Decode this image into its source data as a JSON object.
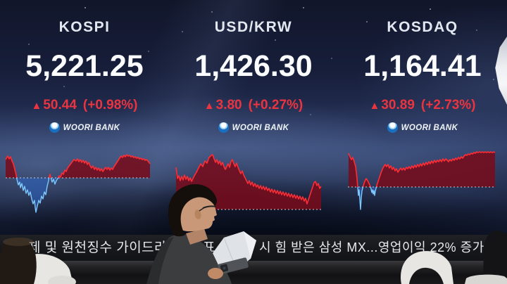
{
  "board": {
    "up_arrow": "▲",
    "panels": [
      {
        "label": "KOSPI",
        "value": "5,221.25",
        "change": "50.44",
        "change_pct": "(+0.98%)",
        "direction": "up",
        "bank": "WOORI BANK"
      },
      {
        "label": "USD/KRW",
        "value": "1,426.30",
        "change": "3.80",
        "change_pct": "(+0.27%)",
        "direction": "up",
        "bank": "WOORI BANK"
      },
      {
        "label": "KOSDAQ",
        "value": "1,164.41",
        "change": "30.89",
        "change_pct": "(+2.73%)",
        "direction": "up",
        "bank": "WOORI BANK"
      }
    ],
    "colors": {
      "up_red": "#ea3440",
      "line_red": "#ff2c34",
      "fill_red": "rgba(118,13,28,0.88)",
      "line_blue": "#7ec8ff",
      "fill_blue": "rgba(45,102,196,0.55)",
      "screen_navy": "#1c2444",
      "baseline_dotted": "#d8dce2"
    }
  },
  "ticker": {
    "fragments": [
      "제 및 원천징수 가이드라",
      "표",
      "시 힘 받은 삼성 MX...영업이익 22% 증가"
    ],
    "arrow": "▶"
  },
  "chart_data": [
    {
      "type": "area",
      "title": "KOSPI intraday",
      "xlabel": "time (unlabeled)",
      "baseline_value": 5170.81,
      "baseline_meaning": "previous close (dotted line)",
      "trend": "opens above prior close, dips below early, then rallies above for rest of session",
      "view": [
        205,
        105
      ],
      "baseline": 38,
      "points": [
        [
          0,
          12
        ],
        [
          3,
          7
        ],
        [
          5,
          11
        ],
        [
          7,
          8
        ],
        [
          9,
          14
        ],
        [
          11,
          18
        ],
        [
          13,
          26
        ],
        [
          15,
          34
        ],
        [
          16,
          40
        ],
        [
          18,
          48
        ],
        [
          20,
          44
        ],
        [
          21,
          52
        ],
        [
          23,
          46
        ],
        [
          25,
          56
        ],
        [
          27,
          50
        ],
        [
          29,
          60
        ],
        [
          31,
          55
        ],
        [
          33,
          63
        ],
        [
          35,
          58
        ],
        [
          37,
          68
        ],
        [
          39,
          75
        ],
        [
          41,
          70
        ],
        [
          42,
          80
        ],
        [
          43,
          87
        ],
        [
          45,
          78
        ],
        [
          47,
          70
        ],
        [
          49,
          74
        ],
        [
          51,
          64
        ],
        [
          53,
          68
        ],
        [
          55,
          58
        ],
        [
          57,
          62
        ],
        [
          59,
          50
        ],
        [
          61,
          42
        ],
        [
          62,
          36
        ],
        [
          63,
          33
        ],
        [
          64,
          37
        ],
        [
          66,
          44
        ],
        [
          68,
          40
        ],
        [
          70,
          47
        ],
        [
          72,
          42
        ],
        [
          74,
          39
        ],
        [
          76,
          35
        ],
        [
          78,
          37
        ],
        [
          80,
          31
        ],
        [
          82,
          33
        ],
        [
          84,
          27
        ],
        [
          86,
          29
        ],
        [
          88,
          24
        ],
        [
          91,
          20
        ],
        [
          94,
          16
        ],
        [
          97,
          12
        ],
        [
          100,
          14
        ],
        [
          102,
          11
        ],
        [
          104,
          15
        ],
        [
          106,
          12
        ],
        [
          108,
          16
        ],
        [
          110,
          13
        ],
        [
          112,
          17
        ],
        [
          114,
          14
        ],
        [
          116,
          19
        ],
        [
          118,
          16
        ],
        [
          120,
          21
        ],
        [
          122,
          24
        ],
        [
          124,
          21
        ],
        [
          126,
          26
        ],
        [
          128,
          23
        ],
        [
          130,
          27
        ],
        [
          132,
          24
        ],
        [
          134,
          28
        ],
        [
          136,
          25
        ],
        [
          138,
          29
        ],
        [
          140,
          26
        ],
        [
          142,
          23
        ],
        [
          144,
          26
        ],
        [
          146,
          23
        ],
        [
          148,
          27
        ],
        [
          150,
          24
        ],
        [
          152,
          26
        ],
        [
          154,
          22
        ],
        [
          156,
          19
        ],
        [
          158,
          16
        ],
        [
          160,
          13
        ],
        [
          162,
          10
        ],
        [
          164,
          7
        ],
        [
          166,
          9
        ],
        [
          168,
          6
        ],
        [
          170,
          8
        ],
        [
          172,
          5
        ],
        [
          174,
          7
        ],
        [
          176,
          6
        ],
        [
          178,
          8
        ],
        [
          180,
          7
        ],
        [
          182,
          9
        ],
        [
          184,
          8
        ],
        [
          186,
          10
        ],
        [
          188,
          9
        ],
        [
          190,
          11
        ],
        [
          192,
          10
        ],
        [
          194,
          12
        ],
        [
          196,
          11
        ],
        [
          198,
          13
        ],
        [
          200,
          12
        ],
        [
          202,
          14
        ],
        [
          205,
          18
        ]
      ]
    },
    {
      "type": "area",
      "title": "USD/KRW intraday",
      "xlabel": "time (unlabeled)",
      "baseline_value": 1422.5,
      "baseline_meaning": "previous close (dotted line)",
      "trend": "stays above prior close all day; spikes early then drifts down, rebounds at close",
      "view": [
        208,
        100
      ],
      "baseline": 86,
      "points": [
        [
          1,
          26
        ],
        [
          2,
          34
        ],
        [
          3,
          42
        ],
        [
          5,
          38
        ],
        [
          7,
          45
        ],
        [
          9,
          39
        ],
        [
          11,
          44
        ],
        [
          13,
          37
        ],
        [
          15,
          43
        ],
        [
          17,
          39
        ],
        [
          19,
          45
        ],
        [
          21,
          41
        ],
        [
          23,
          46
        ],
        [
          25,
          42
        ],
        [
          27,
          38
        ],
        [
          30,
          33
        ],
        [
          33,
          27
        ],
        [
          36,
          21
        ],
        [
          39,
          25
        ],
        [
          42,
          17
        ],
        [
          45,
          20
        ],
        [
          48,
          12
        ],
        [
          51,
          9
        ],
        [
          53,
          8
        ],
        [
          55,
          14
        ],
        [
          57,
          19
        ],
        [
          59,
          15
        ],
        [
          61,
          21
        ],
        [
          63,
          17
        ],
        [
          65,
          23
        ],
        [
          67,
          19
        ],
        [
          69,
          25
        ],
        [
          71,
          29
        ],
        [
          73,
          25
        ],
        [
          75,
          21
        ],
        [
          77,
          26
        ],
        [
          79,
          18
        ],
        [
          81,
          15
        ],
        [
          83,
          21
        ],
        [
          85,
          25
        ],
        [
          87,
          20
        ],
        [
          89,
          26
        ],
        [
          91,
          31
        ],
        [
          93,
          35
        ],
        [
          95,
          31
        ],
        [
          97,
          37
        ],
        [
          99,
          41
        ],
        [
          101,
          45
        ],
        [
          103,
          49
        ],
        [
          105,
          45
        ],
        [
          107,
          51
        ],
        [
          109,
          47
        ],
        [
          111,
          53
        ],
        [
          113,
          49
        ],
        [
          115,
          54
        ],
        [
          117,
          51
        ],
        [
          119,
          56
        ],
        [
          121,
          52
        ],
        [
          123,
          57
        ],
        [
          125,
          53
        ],
        [
          127,
          58
        ],
        [
          129,
          54
        ],
        [
          131,
          59
        ],
        [
          133,
          56
        ],
        [
          135,
          61
        ],
        [
          137,
          57
        ],
        [
          139,
          62
        ],
        [
          141,
          58
        ],
        [
          143,
          63
        ],
        [
          145,
          59
        ],
        [
          147,
          64
        ],
        [
          149,
          60
        ],
        [
          151,
          65
        ],
        [
          153,
          61
        ],
        [
          155,
          66
        ],
        [
          157,
          62
        ],
        [
          159,
          67
        ],
        [
          161,
          63
        ],
        [
          163,
          68
        ],
        [
          165,
          64
        ],
        [
          167,
          69
        ],
        [
          169,
          65
        ],
        [
          171,
          70
        ],
        [
          173,
          66
        ],
        [
          175,
          71
        ],
        [
          177,
          67
        ],
        [
          179,
          72
        ],
        [
          181,
          68
        ],
        [
          183,
          74
        ],
        [
          185,
          70
        ],
        [
          187,
          78
        ],
        [
          189,
          72
        ],
        [
          191,
          66
        ],
        [
          193,
          60
        ],
        [
          195,
          54
        ],
        [
          197,
          48
        ],
        [
          199,
          46
        ],
        [
          201,
          52
        ],
        [
          203,
          49
        ],
        [
          205,
          56
        ],
        [
          207,
          53
        ]
      ]
    },
    {
      "type": "area",
      "title": "KOSDAQ intraday",
      "xlabel": "time (unlabeled)",
      "baseline_value": 1133.52,
      "baseline_meaning": "previous close (dotted line)",
      "trend": "opens higher, briefly plunges below prior close with sharp spikes, then climbs steadily to session high",
      "view": [
        210,
        105
      ],
      "baseline": 54,
      "points": [
        [
          1,
          6
        ],
        [
          3,
          11
        ],
        [
          5,
          15
        ],
        [
          7,
          12
        ],
        [
          9,
          18
        ],
        [
          11,
          25
        ],
        [
          12,
          33
        ],
        [
          13,
          42
        ],
        [
          14,
          54
        ],
        [
          15,
          66
        ],
        [
          16,
          58
        ],
        [
          17,
          72
        ],
        [
          18,
          86
        ],
        [
          19,
          70
        ],
        [
          20,
          60
        ],
        [
          22,
          52
        ],
        [
          24,
          46
        ],
        [
          26,
          42
        ],
        [
          28,
          45
        ],
        [
          30,
          49
        ],
        [
          32,
          53
        ],
        [
          33,
          57
        ],
        [
          34,
          62
        ],
        [
          35,
          58
        ],
        [
          36,
          64
        ],
        [
          37,
          59
        ],
        [
          38,
          66
        ],
        [
          39,
          60
        ],
        [
          40,
          56
        ],
        [
          41,
          52
        ],
        [
          43,
          46
        ],
        [
          45,
          40
        ],
        [
          47,
          34
        ],
        [
          49,
          29
        ],
        [
          51,
          25
        ],
        [
          53,
          22
        ],
        [
          55,
          25
        ],
        [
          57,
          22
        ],
        [
          59,
          27
        ],
        [
          61,
          24
        ],
        [
          63,
          29
        ],
        [
          65,
          26
        ],
        [
          67,
          31
        ],
        [
          69,
          28
        ],
        [
          71,
          33
        ],
        [
          73,
          30
        ],
        [
          75,
          27
        ],
        [
          77,
          30
        ],
        [
          79,
          27
        ],
        [
          81,
          30
        ],
        [
          83,
          26
        ],
        [
          85,
          28
        ],
        [
          87,
          25
        ],
        [
          89,
          28
        ],
        [
          91,
          24
        ],
        [
          93,
          27
        ],
        [
          95,
          23
        ],
        [
          97,
          26
        ],
        [
          99,
          22
        ],
        [
          101,
          25
        ],
        [
          103,
          21
        ],
        [
          105,
          24
        ],
        [
          107,
          20
        ],
        [
          109,
          23
        ],
        [
          111,
          19
        ],
        [
          113,
          22
        ],
        [
          115,
          18
        ],
        [
          117,
          21
        ],
        [
          119,
          17
        ],
        [
          121,
          20
        ],
        [
          123,
          16
        ],
        [
          125,
          19
        ],
        [
          127,
          16
        ],
        [
          129,
          18
        ],
        [
          131,
          15
        ],
        [
          133,
          18
        ],
        [
          135,
          14
        ],
        [
          137,
          17
        ],
        [
          139,
          14
        ],
        [
          141,
          16
        ],
        [
          143,
          18
        ],
        [
          145,
          15
        ],
        [
          147,
          17
        ],
        [
          149,
          14
        ],
        [
          151,
          16
        ],
        [
          153,
          13
        ],
        [
          155,
          15
        ],
        [
          157,
          12
        ],
        [
          159,
          14
        ],
        [
          161,
          11
        ],
        [
          163,
          13
        ],
        [
          165,
          10
        ],
        [
          167,
          8
        ],
        [
          169,
          9
        ],
        [
          171,
          7
        ],
        [
          173,
          8
        ],
        [
          175,
          6
        ],
        [
          177,
          7
        ],
        [
          179,
          5
        ],
        [
          181,
          6
        ],
        [
          183,
          4
        ],
        [
          185,
          5
        ],
        [
          187,
          4
        ],
        [
          189,
          5
        ],
        [
          191,
          4
        ],
        [
          193,
          5
        ],
        [
          195,
          4
        ],
        [
          197,
          5
        ],
        [
          199,
          4
        ],
        [
          201,
          5
        ],
        [
          203,
          4
        ],
        [
          205,
          5
        ],
        [
          207,
          4
        ],
        [
          209,
          5
        ]
      ]
    }
  ]
}
